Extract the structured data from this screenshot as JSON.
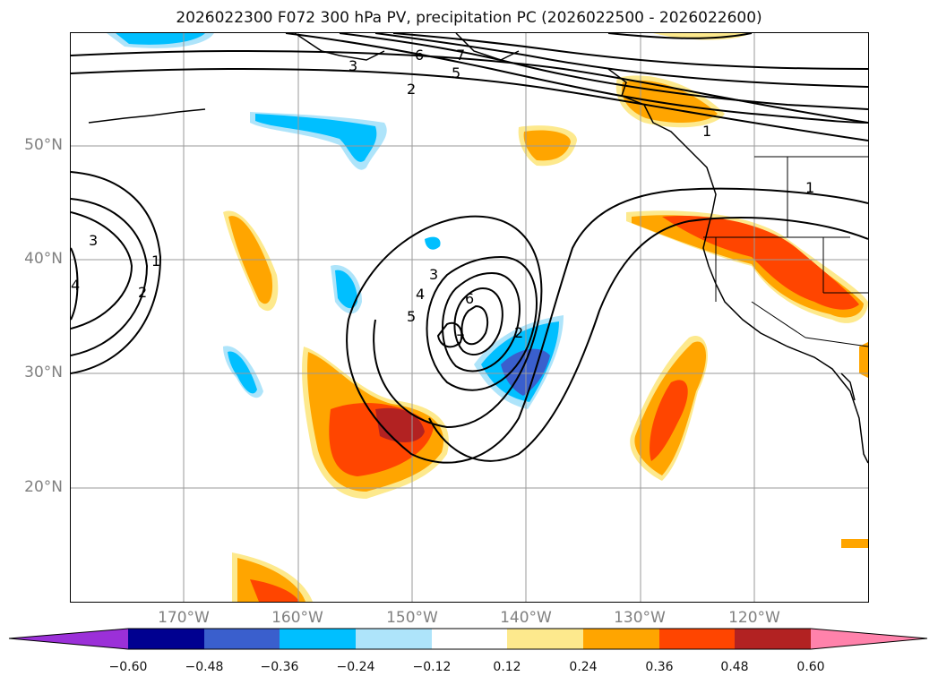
{
  "title": "2026022300 F072 300 hPa PV, precipitation PC (2026022500 - 2026022600)",
  "map": {
    "lat_ticks": [
      "50°N",
      "40°N",
      "30°N",
      "20°N"
    ],
    "lon_ticks": [
      "170°W",
      "160°W",
      "150°W",
      "140°W",
      "130°W",
      "120°W"
    ],
    "contour_labels": [
      "1",
      "2",
      "3",
      "4",
      "5",
      "6",
      "7"
    ]
  },
  "colorbar": {
    "ticks": [
      "−0.60",
      "−0.48",
      "−0.36",
      "−0.24",
      "−0.12",
      "0.12",
      "0.24",
      "0.36",
      "0.48",
      "0.60"
    ],
    "colors": [
      "#9b30d8",
      "#000090",
      "#3a5fcd",
      "#00bfff",
      "#aee4fa",
      "#ffffff",
      "#fde98d",
      "#ffa500",
      "#ff4500",
      "#b22222",
      "#ff82ab"
    ]
  }
}
